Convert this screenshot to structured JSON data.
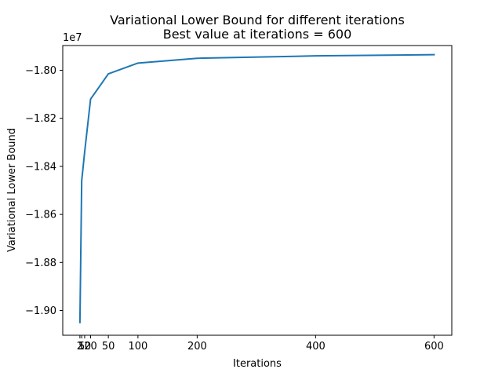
{
  "chart_data": {
    "type": "line",
    "title": "Variational Lower Bound for different iterations",
    "subtitle": "Best value at iterations = 600",
    "xlabel": "Iterations",
    "ylabel": "Variational Lower Bound",
    "y_offset_label": "1e7",
    "y_multiplier": 10000000,
    "xlim": [
      -27,
      630
    ],
    "ylim": [
      -19.103,
      -17.897
    ],
    "x_ticks": [
      {
        "value": 2,
        "label": "2"
      },
      {
        "value": 5,
        "label": "5"
      },
      {
        "value": 10,
        "label": "10"
      },
      {
        "value": 20,
        "label": "20"
      },
      {
        "value": 50,
        "label": "50"
      },
      {
        "value": 100,
        "label": "100"
      },
      {
        "value": 200,
        "label": "200"
      },
      {
        "value": 400,
        "label": "400"
      },
      {
        "value": 600,
        "label": "600"
      }
    ],
    "y_ticks": [
      {
        "value": -18.0,
        "label": "−1.80"
      },
      {
        "value": -18.2,
        "label": "−1.82"
      },
      {
        "value": -18.4,
        "label": "−1.84"
      },
      {
        "value": -18.6,
        "label": "−1.86"
      },
      {
        "value": -18.8,
        "label": "−1.88"
      },
      {
        "value": -19.0,
        "label": "−1.90"
      }
    ],
    "grid": false,
    "series": [
      {
        "color": "#1f77b4",
        "x": [
          2,
          5,
          10,
          20,
          50,
          100,
          200,
          400,
          600
        ],
        "y": [
          -19.05,
          -18.46,
          -18.34,
          -18.12,
          -18.015,
          -17.97,
          -17.95,
          -17.94,
          -17.935
        ]
      }
    ]
  }
}
